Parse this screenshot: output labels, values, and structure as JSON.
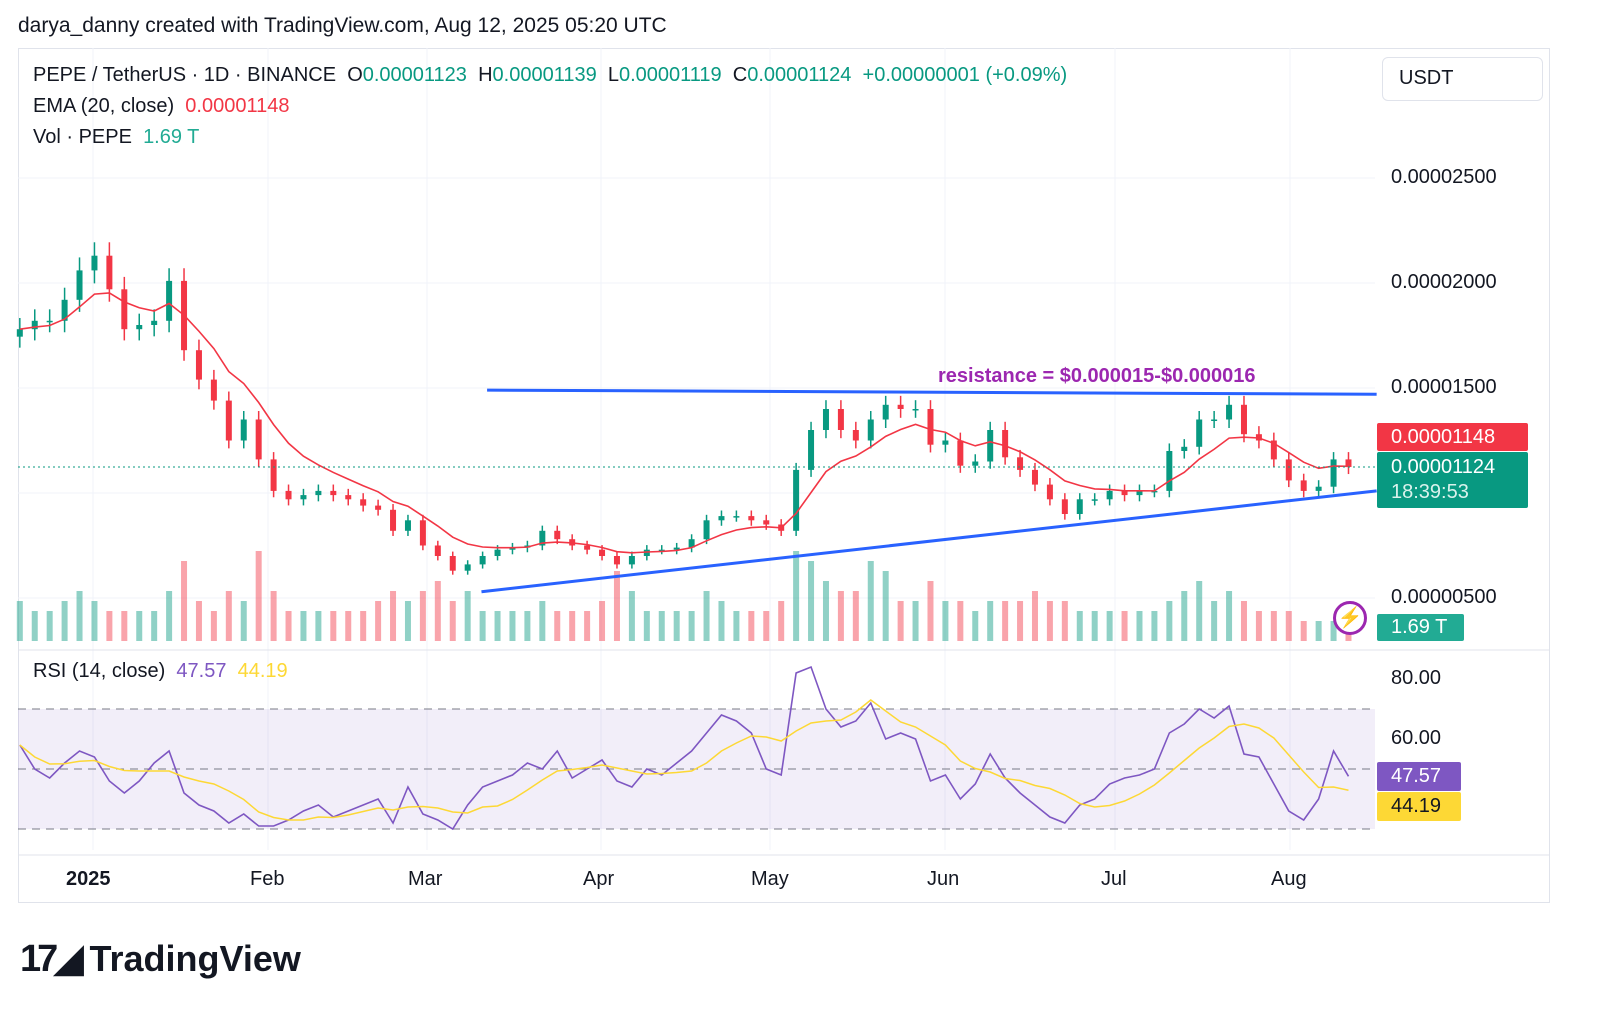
{
  "credit": "darya_danny created with TradingView.com, Aug 12, 2025 05:20 UTC",
  "legend": {
    "symbol": "PEPE / TetherUS · 1D · BINANCE",
    "o_label": "O",
    "o": "0.00001123",
    "h_label": "H",
    "h": "0.00001139",
    "l_label": "L",
    "l": "0.00001119",
    "c_label": "C",
    "c": "0.00001124",
    "change": "+0.00000001 (+0.09%)",
    "ema_label": "EMA (20, close)",
    "ema_value": "0.00001148",
    "vol_label": "Vol · PEPE",
    "vol_value": "1.69 T",
    "rsi_label": "RSI (14, close)",
    "rsi_value": "47.57",
    "rsi_ma_value": "44.19"
  },
  "currency_button": "USDT",
  "price_axis": [
    "0.00002500",
    "0.00002000",
    "0.00001500",
    "0.00000500"
  ],
  "rsi_axis": [
    "80.00",
    "60.00"
  ],
  "tags": {
    "ema": "0.00001148",
    "last": "0.00001124",
    "countdown": "18:39:53",
    "volume": "1.69 T",
    "rsi": "47.57",
    "rsi_ma": "44.19"
  },
  "time_axis": [
    "2025",
    "Feb",
    "Mar",
    "Apr",
    "May",
    "Jun",
    "Jul",
    "Aug"
  ],
  "annotation": "resistance = $0.000015-$0.000016",
  "logo": "TradingView",
  "colors": {
    "up": "#089981",
    "down": "#f23645",
    "ema": "#f23645",
    "trend": "#2962ff",
    "annotation": "#9c27b0",
    "rsi": "#7e57c2",
    "rsi_ma": "#fdd835"
  },
  "chart_data": {
    "type": "candlestick",
    "xlim": [
      "2024-12-19",
      "2025-08-12"
    ],
    "ylim": [
      3.5e-06,
      2.8e-05
    ],
    "grid": true,
    "closes": [
      1.78e-05,
      1.82e-05,
      1.82e-05,
      1.92e-05,
      2.06e-05,
      2.13e-05,
      1.97e-05,
      1.78e-05,
      1.8e-05,
      1.82e-05,
      2.01e-05,
      1.68e-05,
      1.54e-05,
      1.44e-05,
      1.25e-05,
      1.35e-05,
      1.16e-05,
      1.01e-05,
      9.7e-06,
      9.9e-06,
      1.01e-05,
      9.9e-06,
      9.7e-06,
      9.4e-06,
      9.2e-06,
      8.2e-06,
      8.7e-06,
      7.5e-06,
      7e-06,
      6.3e-06,
      6.6e-06,
      7e-06,
      7.3e-06,
      7.4e-06,
      7.5e-06,
      8.2e-06,
      7.8e-06,
      7.5e-06,
      7.3e-06,
      7e-06,
      6.6e-06,
      7e-06,
      7.3e-06,
      7.3e-06,
      7.4e-06,
      7.8e-06,
      8.7e-06,
      8.9e-06,
      8.9e-06,
      8.7e-06,
      8.5e-06,
      8.2e-06,
      1.11e-05,
      1.3e-05,
      1.4e-05,
      1.3e-05,
      1.25e-05,
      1.35e-05,
      1.42e-05,
      1.4e-05,
      1.4e-05,
      1.23e-05,
      1.25e-05,
      1.13e-05,
      1.15e-05,
      1.3e-05,
      1.17e-05,
      1.11e-05,
      1.04e-05,
      9.7e-06,
      9e-06,
      9.7e-06,
      9.7e-06,
      1.01e-05,
      9.9e-06,
      1.01e-05,
      1.01e-05,
      1.2e-05,
      1.22e-05,
      1.35e-05,
      1.35e-05,
      1.42e-05,
      1.28e-05,
      1.25e-05,
      1.16e-05,
      1.06e-05,
      1.01e-05,
      1.03e-05,
      1.16e-05,
      1.124e-05
    ],
    "volume_T": [
      4,
      3,
      3,
      4,
      5,
      4,
      3,
      3,
      3,
      3,
      5,
      8,
      4,
      3,
      5,
      4,
      9,
      5,
      3,
      3,
      3,
      3,
      3,
      3,
      4,
      5,
      4,
      5,
      6,
      4,
      5,
      3,
      3,
      3,
      3,
      4,
      3,
      3,
      3,
      4,
      7,
      5,
      3,
      3,
      3,
      3,
      5,
      4,
      3,
      3,
      3,
      4,
      9,
      8,
      6,
      5,
      5,
      8,
      7,
      4,
      4,
      6,
      4,
      4,
      3,
      4,
      4,
      4,
      5,
      4,
      4,
      3,
      3,
      3,
      3,
      3,
      3,
      4,
      5,
      6,
      4,
      5,
      4,
      3,
      3,
      3,
      2,
      2,
      2,
      1.69
    ],
    "rsi": [
      58,
      50,
      47,
      52,
      56,
      54,
      46,
      42,
      46,
      52,
      56,
      42,
      38,
      36,
      32,
      35,
      31,
      31,
      33,
      36,
      38,
      34,
      36,
      38,
      40,
      32,
      44,
      35,
      33,
      30,
      38,
      44,
      46,
      48,
      52,
      50,
      56,
      47,
      50,
      53,
      46,
      44,
      50,
      48,
      52,
      56,
      62,
      68,
      66,
      62,
      50,
      48,
      82,
      84,
      70,
      64,
      66,
      72,
      60,
      62,
      60,
      46,
      48,
      40,
      45,
      55,
      47,
      42,
      38,
      34,
      32,
      38,
      40,
      45,
      47,
      48,
      50,
      62,
      65,
      70,
      67,
      71,
      55,
      54,
      45,
      36,
      33,
      40,
      56,
      47.57
    ],
    "rsi_levels": [
      70,
      50,
      30
    ],
    "rsi_ylim": [
      20,
      90
    ],
    "support_line": [
      [
        "2025-03-11",
        5.3e-06
      ],
      [
        "2025-08-17",
        1.01e-05
      ]
    ],
    "resistance_line": [
      [
        "2025-03-12",
        1.49e-05
      ],
      [
        "2025-08-17",
        1.47e-05
      ]
    ]
  }
}
